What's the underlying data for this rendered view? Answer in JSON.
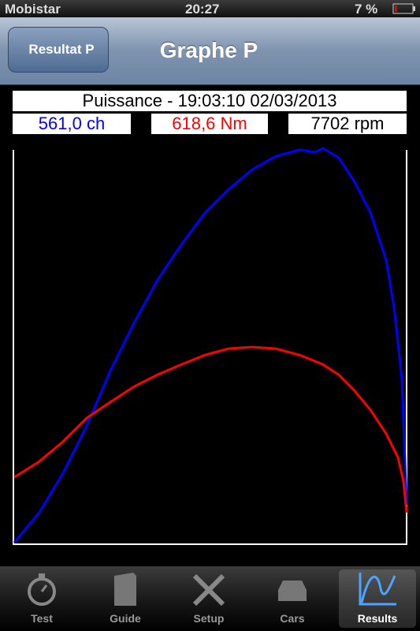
{
  "status_bar": {
    "carrier": "Mobistar",
    "time": "20:27",
    "battery": "7 %"
  },
  "nav_bar": {
    "back_button": "Resultat P",
    "title": "Graphe P"
  },
  "chart_data": {
    "type": "line",
    "title": "Puissance - 19:03:10 02/03/2013",
    "readouts": [
      "561,0 ch",
      "618,6 Nm",
      "7702 rpm"
    ],
    "xlim": [
      0,
      100
    ],
    "ylim": [
      0,
      100
    ],
    "series": [
      {
        "color": "#0000ff",
        "x": [
          0,
          6.4,
          12.4,
          18.5,
          24.5,
          30.5,
          36.5,
          42.6,
          48.6,
          54.6,
          60.6,
          66.7,
          72.7,
          76.7,
          78.7,
          82.7,
          86.7,
          90.8,
          94.8,
          96.8,
          98.8,
          100
        ],
        "values": [
          0.4,
          8.0,
          17.9,
          29.9,
          43.8,
          55.8,
          66.7,
          75.7,
          83.7,
          89.6,
          94.6,
          98.0,
          99.6,
          99.0,
          100,
          97.6,
          91.6,
          83.7,
          71.7,
          59.8,
          41.8,
          10
        ]
      },
      {
        "color": "#ff0000",
        "x": [
          0,
          6.4,
          12.4,
          18.5,
          24.5,
          30.5,
          36.5,
          42.6,
          48.6,
          54.6,
          60.6,
          66.7,
          72.7,
          78.7,
          82.7,
          86.7,
          90.8,
          94.8,
          97.8,
          99.2,
          100
        ],
        "values": [
          16.9,
          20.9,
          25.9,
          31.9,
          35.9,
          39.8,
          42.8,
          45.4,
          47.8,
          49.4,
          49.8,
          49.4,
          47.8,
          45.4,
          42.8,
          38.8,
          33.9,
          27.9,
          21.9,
          15.9,
          8.0
        ]
      }
    ]
  },
  "tab_bar": {
    "items": [
      "Test",
      "Guide",
      "Setup",
      "Cars",
      "Results"
    ],
    "selected": 4
  }
}
